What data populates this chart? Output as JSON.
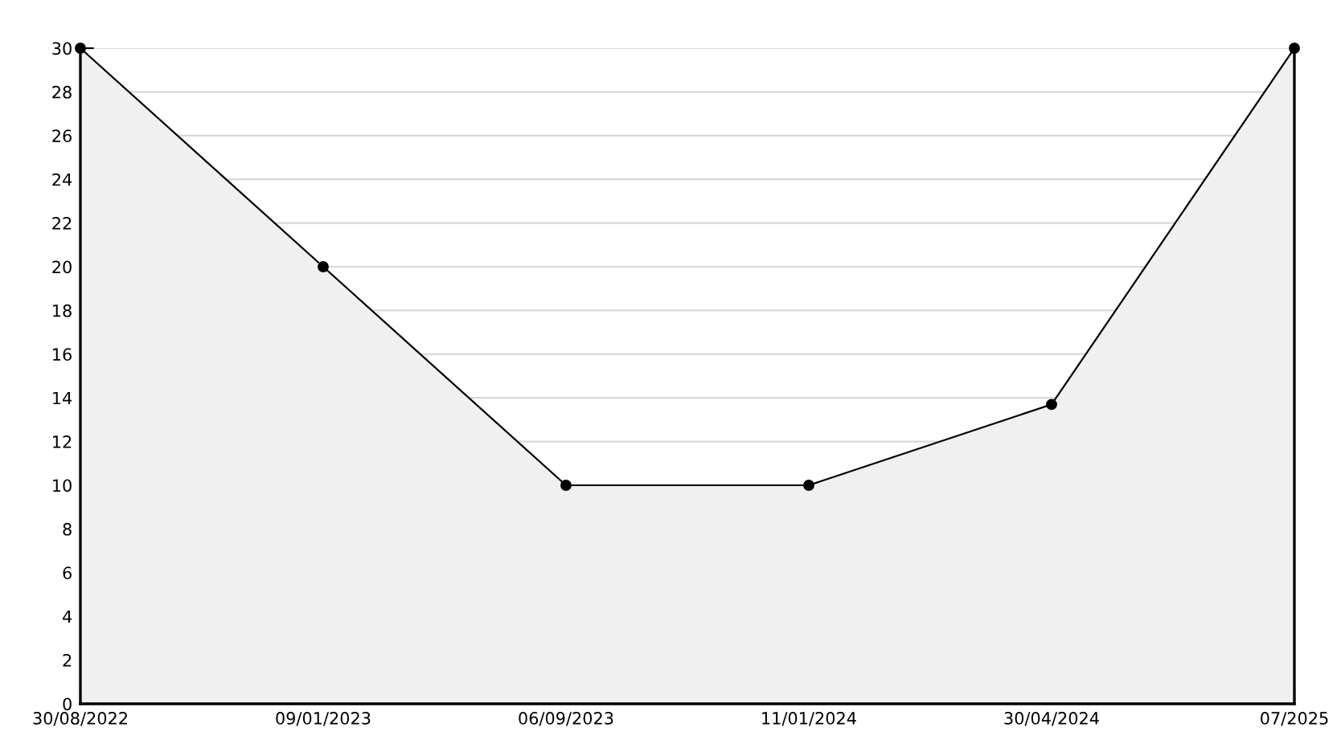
{
  "chart_data": {
    "type": "area",
    "categories": [
      "30/08/2022",
      "09/01/2023",
      "06/09/2023",
      "11/01/2024",
      "30/04/2024",
      "07/2025"
    ],
    "series": [
      {
        "color": "#000000",
        "values": [
          30,
          20,
          10,
          10,
          13.7,
          30
        ]
      }
    ],
    "ylim": [
      0,
      30
    ],
    "yticks": [
      0,
      2,
      4,
      6,
      8,
      10,
      12,
      14,
      16,
      18,
      20,
      22,
      24,
      26,
      28,
      30
    ],
    "grid": "y",
    "marker": "circle",
    "line_style": "solid"
  }
}
